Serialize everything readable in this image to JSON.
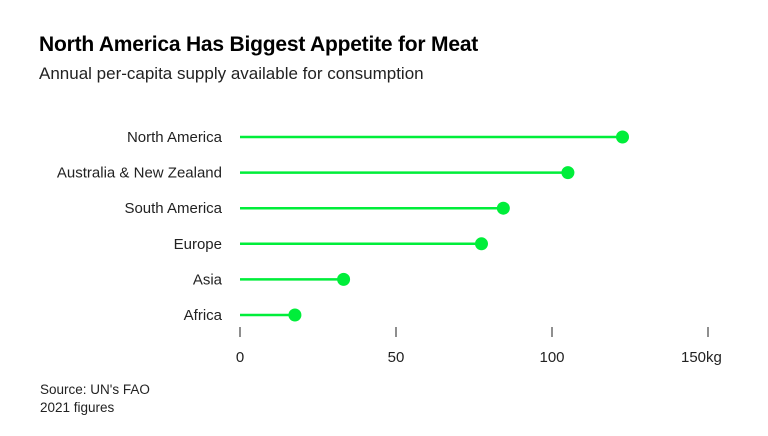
{
  "header": {
    "title": "North America Has Biggest Appetite for Meat",
    "subtitle": "Annual per-capita supply available for consumption"
  },
  "footer": {
    "source": "Source: UN's FAO",
    "note": "2021 figures"
  },
  "colors": {
    "accent": "#00ee3a",
    "text": "#222222",
    "tick": "#444444"
  },
  "chart_data": {
    "type": "lollipop",
    "title": "North America Has Biggest Appetite for Meat",
    "subtitle": "Annual per-capita supply available for consumption",
    "xlabel": "",
    "ylabel": "",
    "unit": "kg",
    "categories": [
      "North America",
      "Australia & New Zealand",
      "South America",
      "Europe",
      "Asia",
      "Africa"
    ],
    "values": [
      122.6,
      105.1,
      84.4,
      77.4,
      33.2,
      17.6
    ],
    "xlim": [
      0,
      150
    ],
    "xticks": [
      0,
      50,
      100,
      150
    ],
    "xtick_labels": [
      "0",
      "50",
      "100",
      "150kg"
    ],
    "grid": false,
    "legend": "none"
  }
}
